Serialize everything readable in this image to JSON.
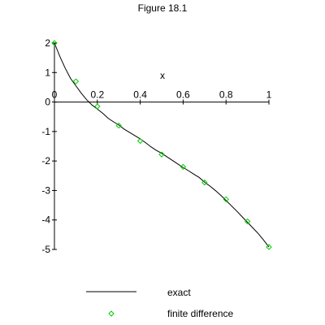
{
  "page": {
    "title": "Figure 18.1"
  },
  "chart_data": {
    "type": "line",
    "title": "Figure 18.1",
    "xlabel": "x",
    "ylabel": "",
    "xlim": [
      0,
      1
    ],
    "ylim": [
      -5,
      2
    ],
    "xticks": [
      0,
      0.2,
      0.4,
      0.6,
      0.8,
      1
    ],
    "yticks": [
      -5,
      -4,
      -3,
      -2,
      -1,
      0,
      1,
      2
    ],
    "x_tick_labels": [
      "0",
      "0.2",
      "0.4",
      "0.6",
      "0.8",
      "1"
    ],
    "y_tick_labels": [
      "-5",
      "-4",
      "-3",
      "-2",
      "-1",
      "0",
      "1",
      "2"
    ],
    "grid": false,
    "legend_position": "bottom",
    "series": [
      {
        "name": "exact",
        "kind": "line",
        "color": "#000000",
        "x": [
          0,
          0.025,
          0.05,
          0.075,
          0.1,
          0.125,
          0.15,
          0.175,
          0.2,
          0.225,
          0.25,
          0.275,
          0.3,
          0.325,
          0.35,
          0.375,
          0.4,
          0.425,
          0.45,
          0.475,
          0.5,
          0.525,
          0.55,
          0.575,
          0.6,
          0.625,
          0.65,
          0.675,
          0.7,
          0.725,
          0.75,
          0.775,
          0.8,
          0.825,
          0.85,
          0.875,
          0.9,
          0.925,
          0.95,
          0.975,
          1
        ],
        "y": [
          2.0,
          1.55,
          1.15,
          0.8,
          0.55,
          0.3,
          0.08,
          -0.1,
          -0.24,
          -0.38,
          -0.55,
          -0.67,
          -0.78,
          -0.92,
          -1.03,
          -1.14,
          -1.25,
          -1.38,
          -1.52,
          -1.64,
          -1.74,
          -1.86,
          -1.98,
          -2.1,
          -2.22,
          -2.33,
          -2.45,
          -2.56,
          -2.72,
          -2.85,
          -3.0,
          -3.16,
          -3.34,
          -3.52,
          -3.7,
          -3.89,
          -4.08,
          -4.27,
          -4.46,
          -4.68,
          -4.92
        ]
      },
      {
        "name": "finite difference",
        "kind": "marker",
        "marker": "diamond",
        "color": "#00cc00",
        "x": [
          0,
          0.1,
          0.2,
          0.3,
          0.4,
          0.5,
          0.6,
          0.7,
          0.8,
          0.9,
          1
        ],
        "y": [
          2.0,
          0.7,
          -0.15,
          -0.8,
          -1.32,
          -1.78,
          -2.2,
          -2.73,
          -3.3,
          -4.05,
          -4.92
        ]
      }
    ]
  }
}
